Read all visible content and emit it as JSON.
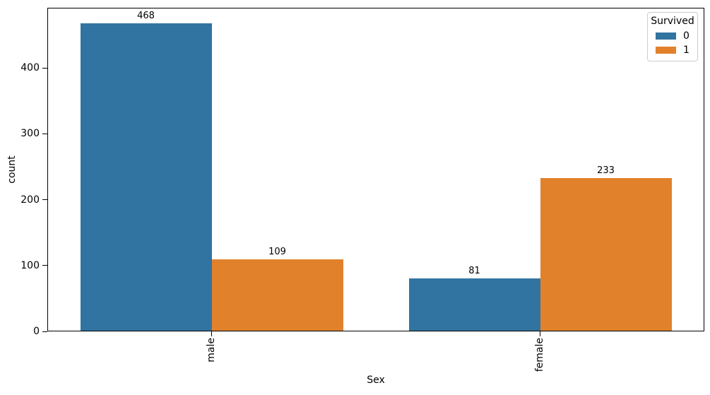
{
  "chart_data": {
    "type": "bar",
    "title": "",
    "xlabel": "Sex",
    "ylabel": "count",
    "categories": [
      "male",
      "female"
    ],
    "series": [
      {
        "name": "0",
        "color": "#3274a1",
        "values": [
          468,
          81
        ]
      },
      {
        "name": "1",
        "color": "#e1812c",
        "values": [
          109,
          233
        ]
      }
    ],
    "bar_value_labels": true,
    "ylim": [
      0,
      491.4
    ],
    "yticks": [
      0,
      100,
      200,
      300,
      400
    ],
    "xtick_rotation": 90,
    "grid": false,
    "legend": {
      "title": "Survived",
      "entries": [
        "0",
        "1"
      ],
      "position": "upper right"
    },
    "colors": {
      "survived_0": "#3274a1",
      "survived_1": "#e1812c",
      "background": "#ffffff",
      "text": "#000000"
    }
  }
}
